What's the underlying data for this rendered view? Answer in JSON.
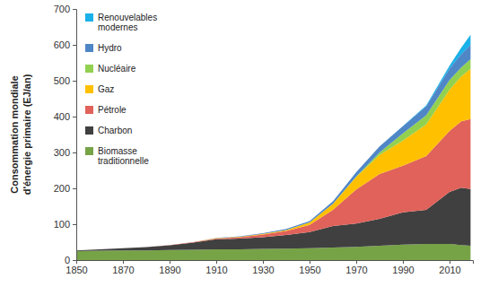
{
  "chart_data": {
    "type": "area",
    "stacked": true,
    "legend": "upper left",
    "ylabel": [
      "Consommation mondiale",
      "d'énergie primaire (EJ/an)"
    ],
    "x": [
      1850,
      1860,
      1870,
      1880,
      1890,
      1900,
      1910,
      1920,
      1930,
      1940,
      1950,
      1960,
      1970,
      1980,
      1990,
      2000,
      2010,
      2015,
      2019
    ],
    "xlim": [
      1850,
      2020
    ],
    "xticks": [
      1850,
      1870,
      1890,
      1910,
      1930,
      1950,
      1970,
      1990,
      2010
    ],
    "ylim": [
      0,
      700
    ],
    "yticks": [
      0,
      100,
      200,
      300,
      400,
      500,
      600,
      700
    ],
    "series": [
      {
        "name": "Biomasse traditionnelle",
        "color": "#77a347",
        "values": [
          25,
          26,
          27,
          27,
          28,
          29,
          30,
          30,
          31,
          32,
          33,
          35,
          37,
          40,
          43,
          45,
          45,
          42,
          40
        ]
      },
      {
        "name": "Charbon",
        "color": "#404040",
        "values": [
          2,
          4,
          6,
          9,
          13,
          20,
          28,
          30,
          33,
          38,
          45,
          60,
          65,
          75,
          90,
          95,
          145,
          160,
          158
        ]
      },
      {
        "name": "Pétrole",
        "color": "#e0625a",
        "values": [
          0,
          0,
          0,
          0,
          1,
          1,
          2,
          4,
          7,
          11,
          20,
          45,
          95,
          125,
          130,
          150,
          170,
          185,
          195
        ]
      },
      {
        "name": "Gaz",
        "color": "#ffc000",
        "values": [
          0,
          0,
          0,
          0,
          0,
          0,
          1,
          1,
          2,
          3,
          7,
          17,
          35,
          53,
          70,
          88,
          115,
          125,
          140
        ]
      },
      {
        "name": "Nucléaire",
        "color": "#92d050",
        "values": [
          0,
          0,
          0,
          0,
          0,
          0,
          0,
          0,
          0,
          0,
          0,
          0,
          1,
          7,
          20,
          26,
          27,
          25,
          27
        ]
      },
      {
        "name": "Hydro",
        "color": "#4f86c6",
        "values": [
          0,
          0,
          0,
          0,
          0,
          0,
          1,
          1,
          2,
          3,
          4,
          7,
          12,
          17,
          20,
          25,
          32,
          37,
          40
        ]
      },
      {
        "name": "Renouvelables modernes",
        "color": "#1ab0e8",
        "values": [
          0,
          0,
          0,
          0,
          0,
          0,
          0,
          0,
          0,
          0,
          0,
          0,
          0,
          0,
          1,
          2,
          8,
          18,
          28
        ]
      }
    ]
  }
}
